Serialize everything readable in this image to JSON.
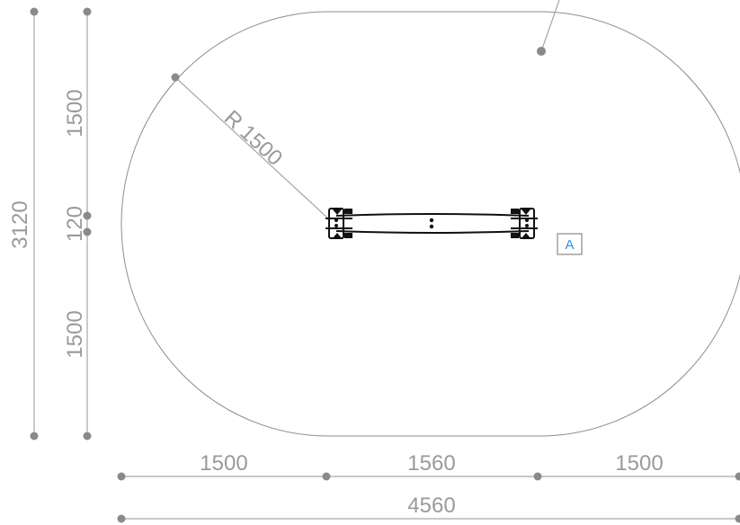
{
  "dimensions": {
    "total_height": "3120",
    "upper_radius_segment": "1500",
    "equipment_width": "120",
    "lower_radius_segment": "1500",
    "left_segment": "1500",
    "middle_segment": "1560",
    "right_segment": "1500",
    "total_width": "4560"
  },
  "radius_label": "R 1500",
  "equipment_marker": "A",
  "colors": {
    "dimension": "#9a9a9a",
    "outline": "#8c8c8c",
    "equipment": "#111111",
    "marker_text": "#2a8fe0"
  }
}
